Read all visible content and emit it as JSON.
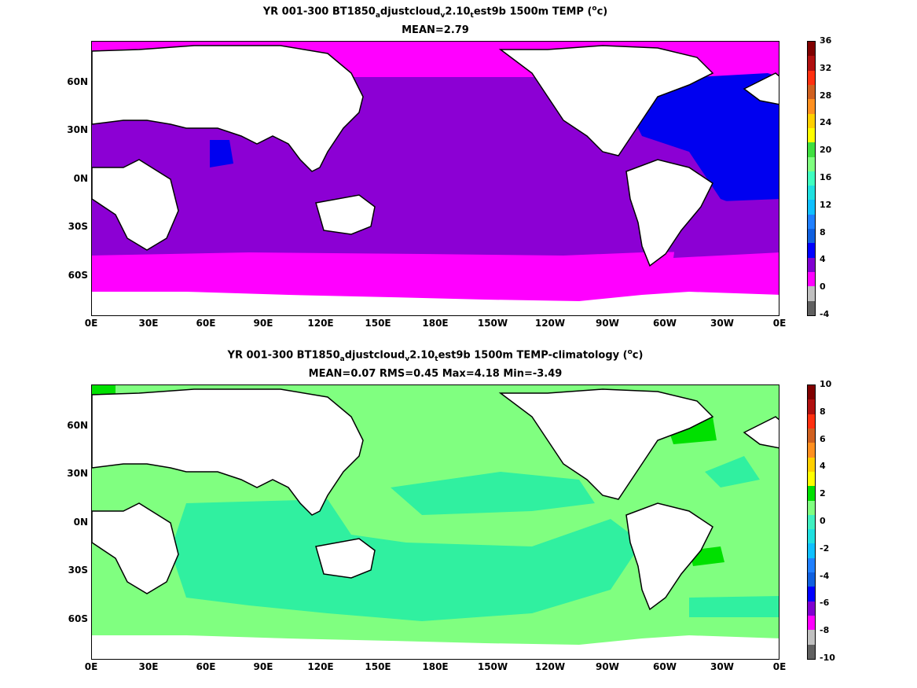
{
  "panel1": {
    "title_prefix": "YR 001-300 BT1850",
    "title_sub1": "a",
    "title_mid": "djustcloud",
    "title_sub2": "v",
    "title_mid2": "2.10",
    "title_sub3": "t",
    "title_suffix": "est9b 1500m TEMP (",
    "title_sup": "o",
    "title_end": "c)",
    "stats": "MEAN=2.79",
    "colorbar": {
      "ticks": [
        "36",
        "32",
        "28",
        "24",
        "20",
        "16",
        "12",
        "8",
        "4",
        "0",
        "-4"
      ],
      "colors": [
        "#800000",
        "#b01010",
        "#ff3010",
        "#d06020",
        "#ff9020",
        "#ffd000",
        "#ffff00",
        "#40e040",
        "#80ff80",
        "#40ffc0",
        "#20e0e0",
        "#10c0ff",
        "#2080ff",
        "#1060e0",
        "#0000ff",
        "#8000d0",
        "#ff00ff",
        "#c0c0c0",
        "#606060"
      ]
    }
  },
  "panel2": {
    "title_prefix": "YR 001-300 BT1850",
    "title_sub1": "a",
    "title_mid": "djustcloud",
    "title_sub2": "v",
    "title_mid2": "2.10",
    "title_sub3": "t",
    "title_suffix": "est9b 1500m TEMP-climatology (",
    "title_sup": "o",
    "title_end": "c)",
    "stats": "MEAN=0.07   RMS=0.45   Max=4.18   Min=-3.49",
    "colorbar": {
      "ticks": [
        "10",
        "8",
        "6",
        "4",
        "2",
        "0",
        "-2",
        "-4",
        "-6",
        "-8",
        "-10"
      ],
      "colors": [
        "#800000",
        "#b01010",
        "#ff3010",
        "#d06020",
        "#ff9020",
        "#ffd000",
        "#ffff00",
        "#00e000",
        "#80ff80",
        "#40f0c0",
        "#20e0e0",
        "#10c0ff",
        "#2080ff",
        "#1060e0",
        "#0000ff",
        "#8000d0",
        "#ff00ff",
        "#c0c0c0",
        "#606060"
      ]
    }
  },
  "lat_labels": [
    "60N",
    "30N",
    "0N",
    "30S",
    "60S"
  ],
  "lon_labels": [
    "0E",
    "30E",
    "60E",
    "90E",
    "120E",
    "150E",
    "180E",
    "150W",
    "120W",
    "90W",
    "60W",
    "30W",
    "0E"
  ],
  "colors": {
    "land": "#ffffff",
    "coast": "#000000",
    "p1_pacific": "#8c00d4",
    "p1_atlantic": "#0000f0",
    "p1_southern": "#ff00ff",
    "p1_arctic": "#ff00ff",
    "p2_ocean_a": "#80ff80",
    "p2_ocean_b": "#30f0a0",
    "p2_green": "#00e000"
  }
}
